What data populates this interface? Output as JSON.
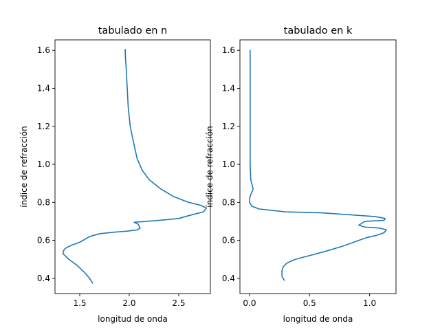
{
  "line_color": "#1f77b4",
  "chart_data": [
    {
      "type": "line",
      "title": "tabulado en n",
      "xlabel": "longitud de onda",
      "ylabel": "índice de refracción",
      "xlim": [
        1.25,
        2.82
      ],
      "ylim": [
        0.32,
        1.655
      ],
      "xticks": [
        1.5,
        2.0,
        2.5
      ],
      "xtick_labels": [
        "1.5",
        "2.0",
        "2.5"
      ],
      "yticks": [
        0.4,
        0.6,
        0.8,
        1.0,
        1.2,
        1.4,
        1.6
      ],
      "ytick_labels": [
        "0.4",
        "0.6",
        "0.8",
        "1.0",
        "1.2",
        "1.4",
        "1.6"
      ],
      "grid": false,
      "series": [
        {
          "x": [
            1.63,
            1.6,
            1.55,
            1.47,
            1.39,
            1.35,
            1.33,
            1.34,
            1.36,
            1.42,
            1.5,
            1.6,
            1.7,
            1.85,
            1.97,
            2.08,
            2.11,
            2.09,
            2.05,
            2.3,
            2.5,
            2.6,
            2.75,
            2.78,
            2.72,
            2.6,
            2.45,
            2.32,
            2.2,
            2.13,
            2.08,
            2.05,
            2.01,
            1.99,
            1.98,
            1.97,
            1.96,
            1.96
          ],
          "y": [
            0.375,
            0.4,
            0.43,
            0.47,
            0.5,
            0.52,
            0.53,
            0.55,
            0.56,
            0.575,
            0.59,
            0.62,
            0.635,
            0.643,
            0.648,
            0.655,
            0.665,
            0.685,
            0.695,
            0.705,
            0.715,
            0.73,
            0.75,
            0.77,
            0.785,
            0.8,
            0.83,
            0.87,
            0.92,
            0.97,
            1.03,
            1.1,
            1.2,
            1.3,
            1.4,
            1.5,
            1.58,
            1.605
          ]
        }
      ]
    },
    {
      "type": "line",
      "title": "tabulado en k",
      "xlabel": "longitud de onda",
      "ylabel": "índice de refracción",
      "xlim": [
        -0.08,
        1.22
      ],
      "ylim": [
        0.32,
        1.655
      ],
      "xticks": [
        0.0,
        0.5,
        1.0
      ],
      "xtick_labels": [
        "0.0",
        "0.5",
        "1.0"
      ],
      "yticks": [
        0.4,
        0.6,
        0.8,
        1.0,
        1.2,
        1.4,
        1.6
      ],
      "ytick_labels": [
        "0.4",
        "0.6",
        "0.8",
        "1.0",
        "1.2",
        "1.4",
        "1.6"
      ],
      "grid": false,
      "series": [
        {
          "x": [
            0.29,
            0.27,
            0.27,
            0.28,
            0.31,
            0.38,
            0.5,
            0.62,
            0.78,
            0.91,
            0.98,
            1.05,
            1.12,
            1.14,
            1.08,
            0.96,
            0.91,
            0.96,
            1.12,
            1.13,
            1.05,
            0.6,
            0.3,
            0.08,
            0.02,
            0.0,
            0.0,
            0.01,
            0.03,
            0.01,
            0.005,
            0.005,
            0.005,
            0.005
          ],
          "y": [
            0.39,
            0.41,
            0.44,
            0.46,
            0.48,
            0.5,
            0.52,
            0.54,
            0.57,
            0.6,
            0.615,
            0.625,
            0.64,
            0.655,
            0.665,
            0.67,
            0.68,
            0.7,
            0.705,
            0.715,
            0.725,
            0.745,
            0.75,
            0.765,
            0.78,
            0.8,
            0.82,
            0.84,
            0.87,
            0.92,
            1.0,
            1.2,
            1.4,
            1.6
          ]
        }
      ]
    }
  ]
}
